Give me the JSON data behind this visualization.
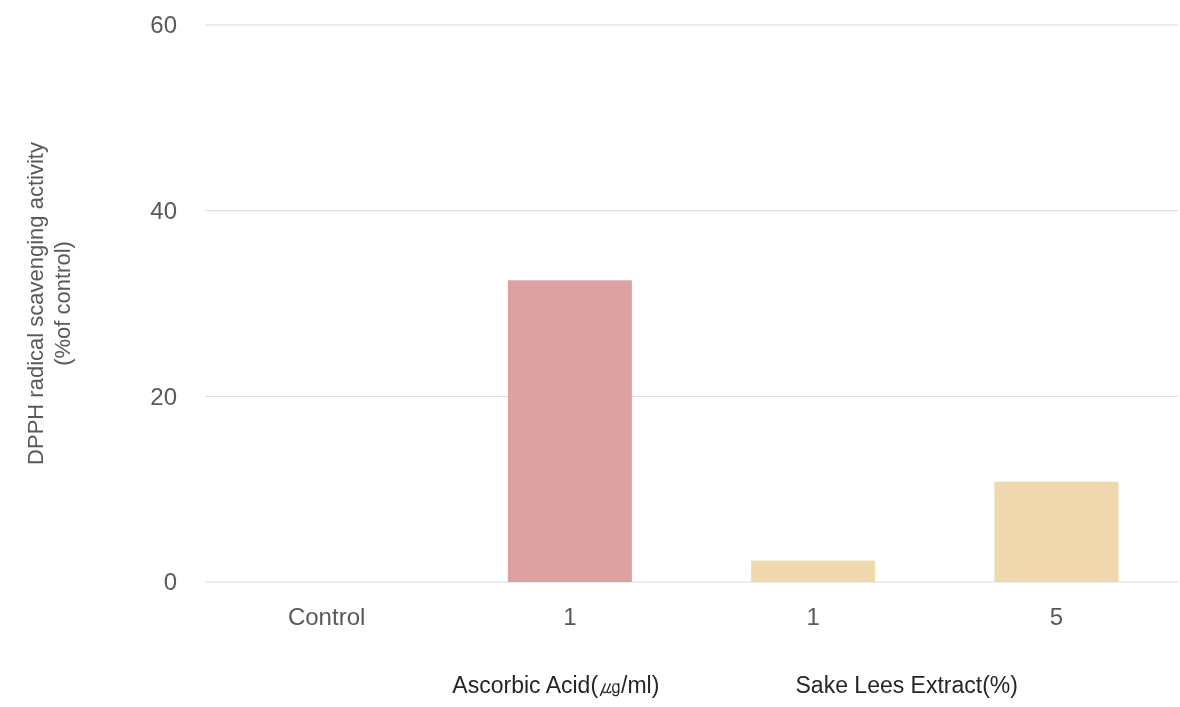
{
  "chart_data": {
    "type": "bar",
    "ylabel": "DPPH radical scavenging activity\n(%of control)",
    "categories": [
      "Control",
      "1",
      "1",
      "5"
    ],
    "values": [
      0,
      32.5,
      2.3,
      10.8
    ],
    "colors": [
      "#dea1a1",
      "#dea1a1",
      "#f0d8ae",
      "#f0d8ae"
    ],
    "ylim": [
      0,
      60
    ],
    "yticks": [
      0,
      20,
      40,
      60
    ],
    "grid": "y",
    "annotations": [
      "Ascorbic Acid(㎍/ml)",
      "Sake Lees Extract(%)"
    ]
  }
}
